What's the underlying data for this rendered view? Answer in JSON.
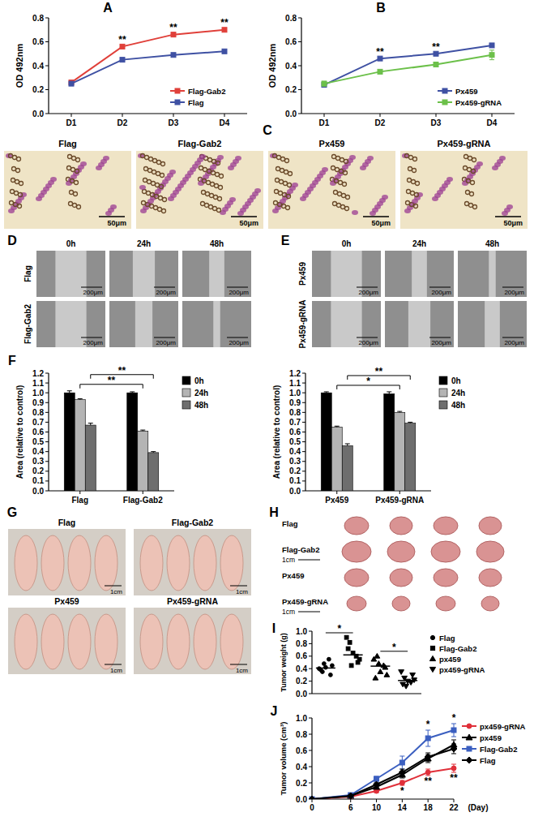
{
  "chart_data": [
    {
      "title": "A",
      "type": "line",
      "categories": [
        "D1",
        "D2",
        "D3",
        "D4"
      ],
      "y_label": "OD 492nm",
      "ylim": [
        0,
        0.8
      ],
      "yticks": [
        {
          "value": 0,
          "label": "0.0"
        },
        {
          "value": 0.2,
          "label": "0.2"
        },
        {
          "value": 0.4,
          "label": "0.4"
        },
        {
          "value": 0.6,
          "label": "0.6"
        },
        {
          "value": 0.8,
          "label": "0.8"
        }
      ],
      "legend": "lower right",
      "marker": "square",
      "series": [
        {
          "name": "Flag-Gab2",
          "color": "#e0403a",
          "values": [
            0.26,
            0.56,
            0.66,
            0.7
          ],
          "errors": [
            0.01,
            0.01,
            0.01,
            0.01
          ]
        },
        {
          "name": "Flag",
          "color": "#3f51a3",
          "values": [
            0.25,
            0.45,
            0.49,
            0.52
          ],
          "errors": [
            0.01,
            0.01,
            0.01,
            0.01
          ]
        }
      ],
      "annotations": [
        {
          "text": "**",
          "x": "D2"
        },
        {
          "text": "**",
          "x": "D3"
        },
        {
          "text": "**",
          "x": "D4"
        }
      ]
    },
    {
      "title": "B",
      "type": "line",
      "categories": [
        "D1",
        "D2",
        "D3",
        "D4"
      ],
      "y_label": "OD 492nm",
      "ylim": [
        0,
        0.8
      ],
      "yticks": [
        {
          "value": 0,
          "label": "0.0"
        },
        {
          "value": 0.2,
          "label": "0.2"
        },
        {
          "value": 0.4,
          "label": "0.4"
        },
        {
          "value": 0.6,
          "label": "0.6"
        },
        {
          "value": 0.8,
          "label": "0.8"
        }
      ],
      "legend": "lower right",
      "marker": "square",
      "series": [
        {
          "name": "Px459",
          "color": "#3f51a3",
          "values": [
            0.24,
            0.46,
            0.5,
            0.57
          ],
          "errors": [
            0.01,
            0.01,
            0.01,
            0.01
          ]
        },
        {
          "name": "Px459-gRNA",
          "color": "#6cc04a",
          "values": [
            0.25,
            0.35,
            0.41,
            0.49
          ],
          "errors": [
            0.02,
            0.01,
            0.01,
            0.04
          ]
        }
      ],
      "annotations": [
        {
          "text": "**",
          "x": "D2"
        },
        {
          "text": "**",
          "x": "D3"
        }
      ]
    },
    {
      "title": "F",
      "type": "bar",
      "categories": [
        "Flag",
        "Flag-Gab2"
      ],
      "y_label": "Area (relative to control)",
      "ylim": [
        0,
        1.2
      ],
      "yticks": [
        {
          "value": 0,
          "label": "0.0"
        },
        {
          "value": 0.1,
          "label": "0.1"
        },
        {
          "value": 0.2,
          "label": "0.2"
        },
        {
          "value": 0.3,
          "label": "0.3"
        },
        {
          "value": 0.4,
          "label": "0.4"
        },
        {
          "value": 0.5,
          "label": "0.5"
        },
        {
          "value": 0.6,
          "label": "0.6"
        },
        {
          "value": 0.7,
          "label": "0.7"
        },
        {
          "value": 0.8,
          "label": "0.8"
        },
        {
          "value": 0.9,
          "label": "0.9"
        },
        {
          "value": 1,
          "label": "1.0"
        },
        {
          "value": 1.1,
          "label": "1.1"
        },
        {
          "value": 1.2,
          "label": "1.2"
        }
      ],
      "legend": "right",
      "series": [
        {
          "name": "0h",
          "color": "#000000",
          "values": [
            1.0,
            1.0
          ],
          "errors": [
            0.02,
            0.01
          ]
        },
        {
          "name": "24h",
          "color": "#b4b4b4",
          "values": [
            0.93,
            0.61
          ],
          "errors": [
            0.01,
            0.01
          ]
        },
        {
          "name": "48h",
          "color": "#6e6e6e",
          "values": [
            0.67,
            0.39
          ],
          "errors": [
            0.02,
            0.01
          ]
        }
      ],
      "annotations": [
        {
          "text": "**",
          "series": "24h"
        },
        {
          "text": "**",
          "series": "48h"
        }
      ]
    },
    {
      "type": "bar",
      "categories": [
        "Px459",
        "Px459-gRNA"
      ],
      "y_label": "Area (relative to control)",
      "ylim": [
        0,
        1.2
      ],
      "yticks": [
        {
          "value": 0,
          "label": "0.0"
        },
        {
          "value": 0.1,
          "label": "0.1"
        },
        {
          "value": 0.2,
          "label": "0.2"
        },
        {
          "value": 0.3,
          "label": "0.3"
        },
        {
          "value": 0.4,
          "label": "0.4"
        },
        {
          "value": 0.5,
          "label": "0.5"
        },
        {
          "value": 0.6,
          "label": "0.6"
        },
        {
          "value": 0.7,
          "label": "0.7"
        },
        {
          "value": 0.8,
          "label": "0.8"
        },
        {
          "value": 0.9,
          "label": "0.9"
        },
        {
          "value": 1,
          "label": "1.0"
        },
        {
          "value": 1.1,
          "label": "1.1"
        },
        {
          "value": 1.2,
          "label": "1.2"
        }
      ],
      "legend": "right",
      "series": [
        {
          "name": "0h",
          "color": "#000000",
          "values": [
            1.0,
            0.99
          ],
          "errors": [
            0.01,
            0.02
          ]
        },
        {
          "name": "24h",
          "color": "#b4b4b4",
          "values": [
            0.65,
            0.8
          ],
          "errors": [
            0.01,
            0.01
          ]
        },
        {
          "name": "48h",
          "color": "#6e6e6e",
          "values": [
            0.46,
            0.69
          ],
          "errors": [
            0.02,
            0.01
          ]
        }
      ],
      "annotations": [
        {
          "text": "*",
          "series": "24h"
        },
        {
          "text": "**",
          "series": "48h"
        }
      ]
    },
    {
      "title": "I",
      "type": "scatter",
      "y_label": "Tumor weight (g)",
      "ylim": [
        0,
        1
      ],
      "yticks": [
        {
          "value": 0,
          "label": "0.0"
        },
        {
          "value": 0.2,
          "label": "0.2"
        },
        {
          "value": 0.4,
          "label": "0.4"
        },
        {
          "value": 0.6,
          "label": "0.6"
        },
        {
          "value": 0.8,
          "label": "0.8"
        },
        {
          "value": 1,
          "label": "1.0"
        }
      ],
      "legend": "right",
      "tick_labels": "y",
      "series": [
        {
          "name": "Flag",
          "color": "#000000",
          "marker": "circle",
          "values": [
            0.4,
            0.35,
            0.42,
            0.55,
            0.45,
            0.38,
            0.3,
            0.48
          ],
          "median": 0.41
        },
        {
          "name": "Flag-Gab2",
          "color": "#000000",
          "marker": "square",
          "values": [
            0.9,
            0.82,
            0.65,
            0.6,
            0.55,
            0.72,
            0.5,
            0.45
          ],
          "median": 0.62
        },
        {
          "name": "px459",
          "color": "#000000",
          "marker": "triangle",
          "values": [
            0.55,
            0.6,
            0.35,
            0.45,
            0.3,
            0.25,
            0.42,
            0.48
          ],
          "median": 0.44
        },
        {
          "name": "px459-gRNA",
          "color": "#000000",
          "marker": "triangle-down",
          "values": [
            0.35,
            0.25,
            0.2,
            0.18,
            0.22,
            0.15,
            0.3,
            0.12
          ],
          "median": 0.21
        }
      ],
      "annotations": [
        {
          "text": "*",
          "between": [
            "Flag",
            "Flag-Gab2"
          ]
        },
        {
          "text": "*",
          "between": [
            "px459",
            "px459-gRNA"
          ]
        }
      ]
    },
    {
      "title": "J",
      "type": "line",
      "x": [
        0,
        6,
        10,
        14,
        18,
        22
      ],
      "xlim": [
        0,
        22
      ],
      "xticks": [
        0,
        6,
        10,
        14,
        18,
        22
      ],
      "x_label": "(Day)",
      "y_label": "Tumor volume (cm³)",
      "ylim": [
        0,
        1
      ],
      "yticks": [
        {
          "value": 0,
          "label": "0.0"
        },
        {
          "value": 0.2,
          "label": "0.2"
        },
        {
          "value": 0.4,
          "label": "0.4"
        },
        {
          "value": 0.6,
          "label": "0.6"
        },
        {
          "value": 0.8,
          "label": "0.8"
        },
        {
          "value": 1,
          "label": "1.0"
        }
      ],
      "legend": "right",
      "series": [
        {
          "name": "px459-gRNA",
          "color": "#e0303a",
          "marker": "circle",
          "values": [
            0,
            0.03,
            0.1,
            0.2,
            0.33,
            0.38
          ],
          "errors": [
            0,
            0.01,
            0.02,
            0.03,
            0.04,
            0.05
          ]
        },
        {
          "name": "px459",
          "color": "#000000",
          "marker": "triangle",
          "values": [
            0,
            0.04,
            0.15,
            0.3,
            0.5,
            0.67
          ],
          "errors": [
            0,
            0.01,
            0.02,
            0.04,
            0.05,
            0.06
          ]
        },
        {
          "name": "Flag-Gab2",
          "color": "#3b5fc0",
          "marker": "square",
          "values": [
            0,
            0.05,
            0.25,
            0.45,
            0.75,
            0.85
          ],
          "errors": [
            0,
            0.01,
            0.03,
            0.08,
            0.1,
            0.08
          ]
        },
        {
          "name": "Flag",
          "color": "#000000",
          "marker": "diamond",
          "values": [
            0,
            0.04,
            0.18,
            0.33,
            0.52,
            0.62
          ],
          "errors": [
            0,
            0.01,
            0.02,
            0.04,
            0.05,
            0.06
          ]
        }
      ],
      "annotations": [
        {
          "text": "*",
          "x": 18,
          "position": "above"
        },
        {
          "text": "*",
          "x": 22,
          "position": "above"
        },
        {
          "text": "*",
          "x": 14,
          "position": "below"
        },
        {
          "text": "**",
          "x": 18,
          "position": "below"
        },
        {
          "text": "**",
          "x": 22,
          "position": "below"
        }
      ]
    }
  ],
  "image_panels": {
    "C": {
      "title": "C",
      "labels": [
        "Flag",
        "Flag-Gab2",
        "Px459",
        "Px459-gRNA"
      ],
      "scale_bar": "50μm"
    },
    "D": {
      "title": "D",
      "columns": [
        "0h",
        "24h",
        "48h"
      ],
      "rows": [
        "Flag",
        "Flag-Gab2"
      ],
      "scale_bar": "200μm"
    },
    "E": {
      "title": "E",
      "columns": [
        "0h",
        "24h",
        "48h"
      ],
      "rows": [
        "Px459",
        "Px459-gRNA"
      ],
      "scale_bar": "200μm"
    },
    "H": {
      "title": "H",
      "rows": [
        "Flag",
        "Flag-Gab2",
        "Px459",
        "Px459-gRNA"
      ],
      "scale_bar": "1cm"
    },
    "G": {
      "title": "G",
      "labels": [
        "Flag",
        "Flag-Gab2",
        "Px459",
        "Px459-gRNA"
      ],
      "scale_bar": "1cm"
    }
  }
}
